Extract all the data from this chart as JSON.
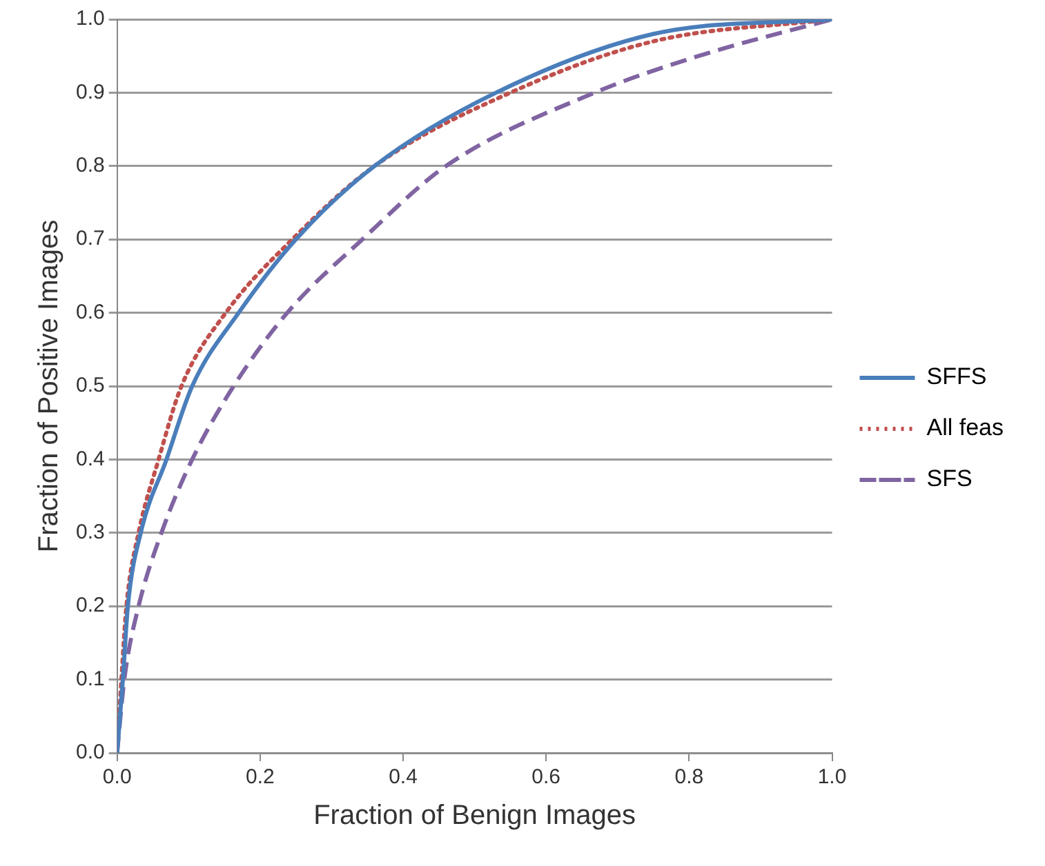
{
  "chart_data": {
    "type": "line",
    "xlabel": "Fraction of Benign Images",
    "ylabel": "Fraction of Positive Images",
    "xlim": [
      0,
      1
    ],
    "ylim": [
      0,
      1
    ],
    "xticks": [
      {
        "value": 0,
        "label": "0.0"
      },
      0.2,
      0.4,
      0.6,
      0.8,
      {
        "value": 1,
        "label": "1.0"
      }
    ],
    "yticks": [
      {
        "value": 0,
        "label": "0.0"
      },
      0.1,
      0.2,
      0.3,
      0.4,
      0.5,
      0.6,
      0.7,
      0.8,
      0.9,
      {
        "value": 1,
        "label": "1.0"
      }
    ],
    "grid": "y",
    "legend": "right",
    "marker": "none",
    "series": [
      {
        "name": "SFFS",
        "color": "#4a7ebb",
        "line_style": "solid",
        "x": [
          0,
          0.008,
          0.015,
          0.033,
          0.069,
          0.105,
          0.17,
          0.25,
          0.36,
          0.53,
          0.75,
          1
        ],
        "values": [
          0,
          0.1,
          0.2,
          0.3,
          0.4,
          0.5,
          0.6,
          0.7,
          0.8,
          0.9,
          0.98,
          1
        ]
      },
      {
        "name": "All feas",
        "color": "#c0504d",
        "line_style": "dotted",
        "x": [
          0,
          0.006,
          0.013,
          0.03,
          0.058,
          0.09,
          0.152,
          0.245,
          0.36,
          0.55,
          0.75,
          1
        ],
        "values": [
          0,
          0.1,
          0.2,
          0.3,
          0.4,
          0.5,
          0.6,
          0.7,
          0.8,
          0.9,
          0.97,
          1
        ]
      },
      {
        "name": "SFS",
        "color": "#8064a2",
        "line_style": "dashed",
        "x": [
          0,
          0.01,
          0.03,
          0.062,
          0.105,
          0.163,
          0.238,
          0.343,
          0.46,
          0.668,
          0.82,
          1
        ],
        "values": [
          0,
          0.1,
          0.2,
          0.3,
          0.4,
          0.5,
          0.6,
          0.7,
          0.8,
          0.9,
          0.952,
          1
        ]
      }
    ]
  }
}
